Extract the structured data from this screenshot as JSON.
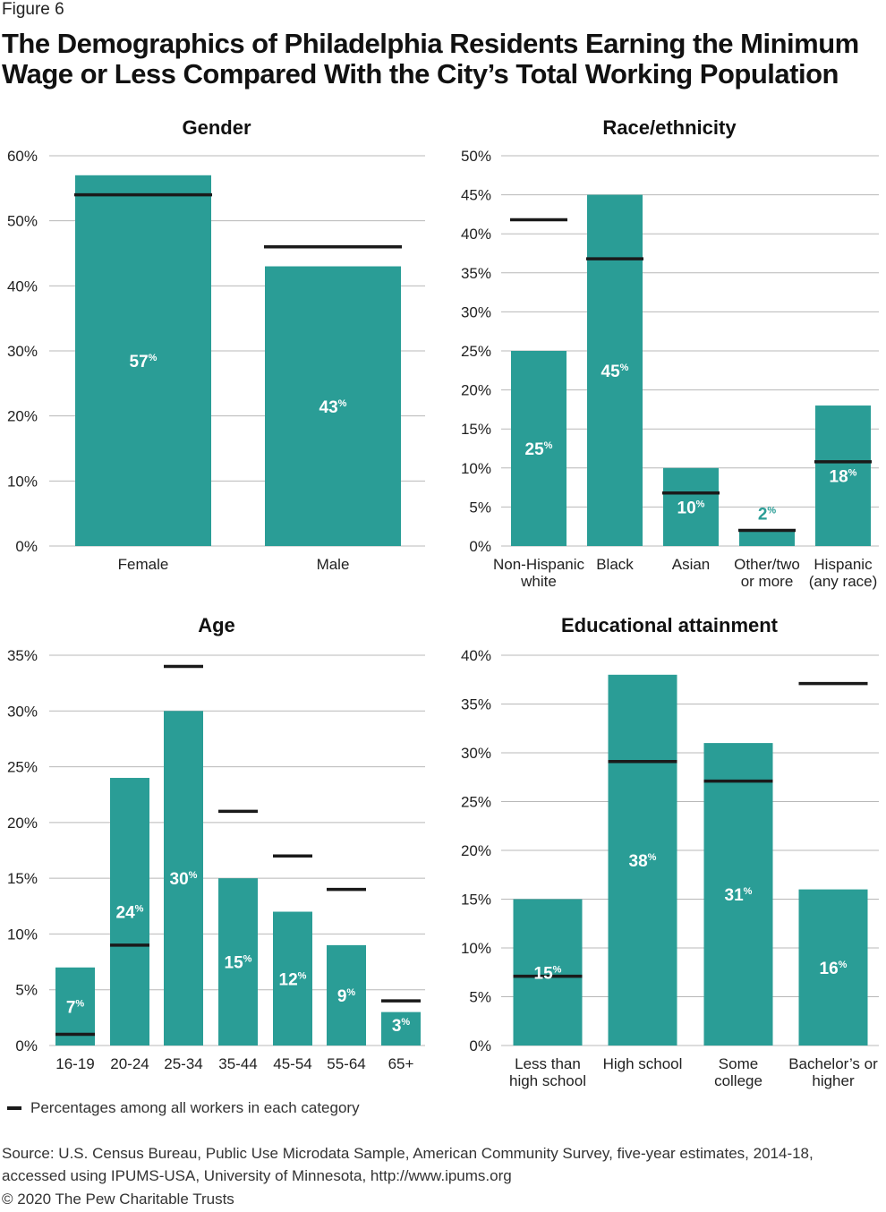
{
  "figure_label": "Figure 6",
  "title": "The Demographics of Philadelphia Residents Earning the Minimum Wage or Less Compared With the City’s Total Working Population",
  "legend_label": "Percentages among all workers in each category",
  "source": "Source: U.S. Census Bureau, Public Use Microdata Sample, American Community Survey, five-year estimates, 2014-18, accessed using IPUMS-USA, University of Minnesota, http://www.ipums.org",
  "copyright": "© 2020 The Pew Charitable Trusts",
  "colors": {
    "bar": "#2a9d96",
    "reference": "#1a1a1a",
    "grid": "#b8b8b8",
    "label_inside": "#ffffff"
  },
  "chart_data": [
    {
      "type": "bar",
      "title": "Gender",
      "ylim": [
        0,
        60
      ],
      "yticks": [
        "0%",
        "10%",
        "20%",
        "30%",
        "40%",
        "50%",
        "60%"
      ],
      "ytick_values": [
        0,
        10,
        20,
        30,
        40,
        50,
        60
      ],
      "categories": [
        [
          "Female"
        ],
        [
          "Male"
        ]
      ],
      "values": [
        57,
        43
      ],
      "value_labels": [
        "57",
        "43"
      ],
      "reference_values": [
        54,
        46
      ],
      "grid": true
    },
    {
      "type": "bar",
      "title": "Race/ethnicity",
      "ylim": [
        0,
        50
      ],
      "yticks": [
        "0%",
        "5%",
        "10%",
        "15%",
        "20%",
        "25%",
        "30%",
        "35%",
        "40%",
        "45%",
        "50%"
      ],
      "ytick_values": [
        0,
        5,
        10,
        15,
        20,
        25,
        30,
        35,
        40,
        45,
        50
      ],
      "categories": [
        [
          "Non-Hispanic",
          "white"
        ],
        [
          "Black"
        ],
        [
          "Asian"
        ],
        [
          "Other/two",
          "or more"
        ],
        [
          "Hispanic",
          "(any race)"
        ]
      ],
      "values": [
        25,
        45,
        10,
        2,
        18
      ],
      "value_labels": [
        "25",
        "45",
        "10",
        "2",
        "18"
      ],
      "reference_values": [
        41.8,
        36.8,
        6.8,
        2.0,
        10.8
      ],
      "grid": true
    },
    {
      "type": "bar",
      "title": "Age",
      "ylim": [
        0,
        35
      ],
      "yticks": [
        "0%",
        "5%",
        "10%",
        "15%",
        "20%",
        "25%",
        "30%",
        "35%"
      ],
      "ytick_values": [
        0,
        5,
        10,
        15,
        20,
        25,
        30,
        35
      ],
      "categories": [
        [
          "16-19"
        ],
        [
          "20-24"
        ],
        [
          "25-34"
        ],
        [
          "35-44"
        ],
        [
          "45-54"
        ],
        [
          "55-64"
        ],
        [
          "65+"
        ]
      ],
      "values": [
        7,
        24,
        30,
        15,
        12,
        9,
        3
      ],
      "value_labels": [
        "7",
        "24",
        "30",
        "15",
        "12",
        "9",
        "3"
      ],
      "reference_values": [
        1,
        9,
        34,
        21,
        17,
        14,
        4
      ],
      "grid": true
    },
    {
      "type": "bar",
      "title": "Educational attainment",
      "ylim": [
        0,
        40
      ],
      "yticks": [
        "0%",
        "5%",
        "10%",
        "15%",
        "20%",
        "25%",
        "30%",
        "35%",
        "40%"
      ],
      "ytick_values": [
        0,
        5,
        10,
        15,
        20,
        25,
        30,
        35,
        40
      ],
      "categories": [
        [
          "Less than",
          "high school"
        ],
        [
          "High school"
        ],
        [
          "Some",
          "college"
        ],
        [
          "Bachelor’s or",
          "higher"
        ]
      ],
      "values": [
        15,
        38,
        31,
        16
      ],
      "value_labels": [
        "15",
        "38",
        "31",
        "16"
      ],
      "reference_values": [
        7.1,
        29.1,
        27.1,
        37.1
      ],
      "grid": true
    }
  ]
}
